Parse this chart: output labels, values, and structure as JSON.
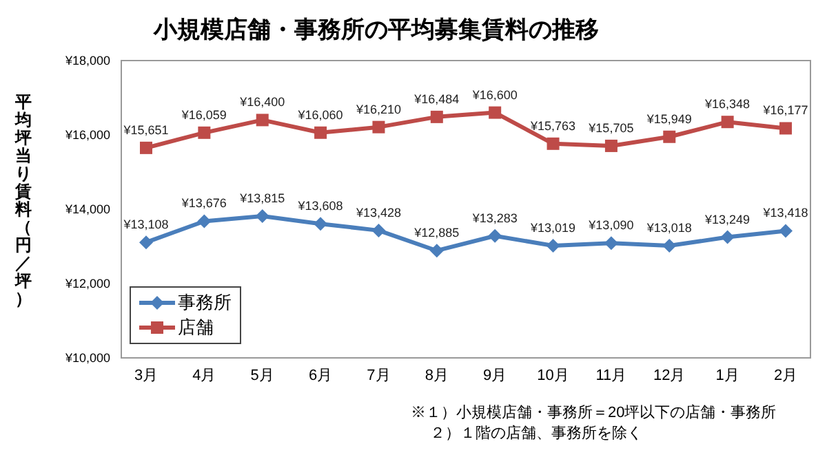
{
  "chart_data": {
    "type": "line",
    "title": "小規模店舗・事務所の平均募集賃料の推移",
    "ylabel": "平均坪当り賃料（円／坪）",
    "categories": [
      "3月",
      "4月",
      "5月",
      "6月",
      "7月",
      "8月",
      "9月",
      "10月",
      "11月",
      "12月",
      "1月",
      "2月"
    ],
    "series": [
      {
        "name": "事務所",
        "color": "#4a7ebb",
        "marker": "diamond",
        "values": [
          13108,
          13676,
          13815,
          13608,
          13428,
          12885,
          13283,
          13019,
          13090,
          13018,
          13249,
          13418
        ],
        "value_labels": [
          "¥13,108",
          "¥13,676",
          "¥13,815",
          "¥13,608",
          "¥13,428",
          "¥12,885",
          "¥13,283",
          "¥13,019",
          "¥13,090",
          "¥13,018",
          "¥13,249",
          "¥13,418"
        ]
      },
      {
        "name": "店舗",
        "color": "#be4b48",
        "marker": "square",
        "values": [
          15651,
          16059,
          16400,
          16060,
          16210,
          16484,
          16600,
          15763,
          15705,
          15949,
          16348,
          16177
        ],
        "value_labels": [
          "¥15,651",
          "¥16,059",
          "¥16,400",
          "¥16,060",
          "¥16,210",
          "¥16,484",
          "¥16,600",
          "¥15,763",
          "¥15,705",
          "¥15,949",
          "¥16,348",
          "¥16,177"
        ]
      }
    ],
    "ylim": [
      10000,
      18000
    ],
    "yticks": [
      {
        "value": 10000,
        "label": "¥10,000"
      },
      {
        "value": 12000,
        "label": "¥12,000"
      },
      {
        "value": 14000,
        "label": "¥14,000"
      },
      {
        "value": 16000,
        "label": "¥16,000"
      },
      {
        "value": 18000,
        "label": "¥18,000"
      }
    ],
    "grid": false,
    "legend": "bottom left",
    "line_style": "solid",
    "annotations": [
      "※１）小規模店舗・事務所＝20坪以下の店舗・事務所",
      "２）１階の店舗、事務所を除く"
    ]
  }
}
